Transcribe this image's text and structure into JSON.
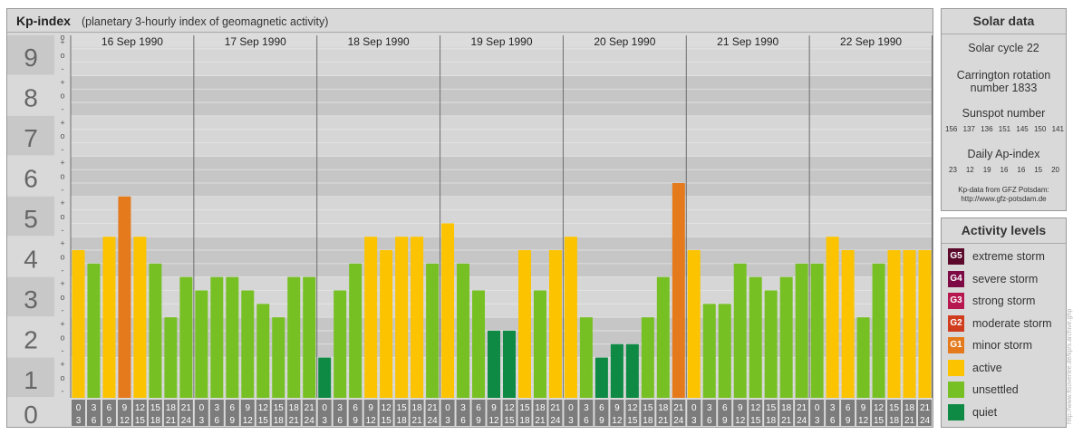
{
  "title": "Kp-index",
  "subtitle": "(planetary 3-hourly index of geomagnetic activity)",
  "chart_data": {
    "type": "bar",
    "ylim": [
      0,
      9
    ],
    "y_ticks": [
      "0",
      "1",
      "2",
      "3",
      "4",
      "5",
      "6",
      "7",
      "8",
      "9"
    ],
    "sub_ticks": [
      "+",
      "o",
      "-"
    ],
    "days": [
      "16 Sep 1990",
      "17 Sep 1990",
      "18 Sep 1990",
      "19 Sep 1990",
      "20 Sep 1990",
      "21 Sep 1990",
      "22 Sep 1990"
    ],
    "hour_starts": [
      "0",
      "3",
      "6",
      "9",
      "12",
      "15",
      "18",
      "21"
    ],
    "hour_ends": [
      "3",
      "6",
      "9",
      "12",
      "15",
      "18",
      "21",
      "24"
    ],
    "values": [
      [
        3.667,
        3.333,
        4.0,
        5.0,
        4.0,
        3.333,
        2.0,
        3.0
      ],
      [
        2.667,
        3.0,
        3.0,
        2.667,
        2.333,
        2.0,
        3.0,
        3.0
      ],
      [
        1.0,
        2.667,
        3.333,
        4.0,
        3.667,
        4.0,
        4.0,
        3.333
      ],
      [
        4.333,
        3.333,
        2.667,
        1.667,
        1.667,
        3.667,
        2.667,
        3.667
      ],
      [
        4.0,
        2.0,
        1.0,
        1.333,
        1.333,
        2.0,
        3.0,
        5.333
      ],
      [
        3.667,
        2.333,
        2.333,
        3.333,
        3.0,
        2.667,
        3.0,
        3.333
      ],
      [
        3.333,
        4.0,
        3.667,
        2.0,
        3.333,
        3.667,
        3.667,
        3.667
      ]
    ],
    "level_colors": {
      "quiet": "#0e8a44",
      "unsettled": "#77c024",
      "active": "#fbc300",
      "minor_storm": "#e57a1c"
    }
  },
  "solar": {
    "title": "Solar data",
    "cycle": "Solar cycle 22",
    "carrington_line1": "Carrington rotation",
    "carrington_line2": "number 1833",
    "sunspot_title": "Sunspot number",
    "sunspot_values": [
      "156",
      "137",
      "136",
      "151",
      "145",
      "150",
      "141"
    ],
    "ap_title": "Daily Ap-index",
    "ap_values": [
      "23",
      "12",
      "19",
      "16",
      "16",
      "15",
      "20"
    ],
    "source_line1": "Kp-data from GFZ Potsdam:",
    "source_line2": "http://www.gfz-potsdam.de"
  },
  "legend": {
    "title": "Activity levels",
    "items": [
      {
        "code": "G5",
        "label": "extreme storm",
        "color": "#5b0a2c"
      },
      {
        "code": "G4",
        "label": "severe storm",
        "color": "#7d0a45"
      },
      {
        "code": "G3",
        "label": "strong storm",
        "color": "#b6174f"
      },
      {
        "code": "G2",
        "label": "moderate storm",
        "color": "#d03c1e"
      },
      {
        "code": "G1",
        "label": "minor storm",
        "color": "#e57a1c"
      },
      {
        "code": "",
        "label": "active",
        "color": "#fbc300"
      },
      {
        "code": "",
        "label": "unsettled",
        "color": "#77c024"
      },
      {
        "code": "",
        "label": "quiet",
        "color": "#0e8a44"
      }
    ]
  },
  "side_url": "http://www.ftsoverlee.de/kp/s.archive.ghp"
}
